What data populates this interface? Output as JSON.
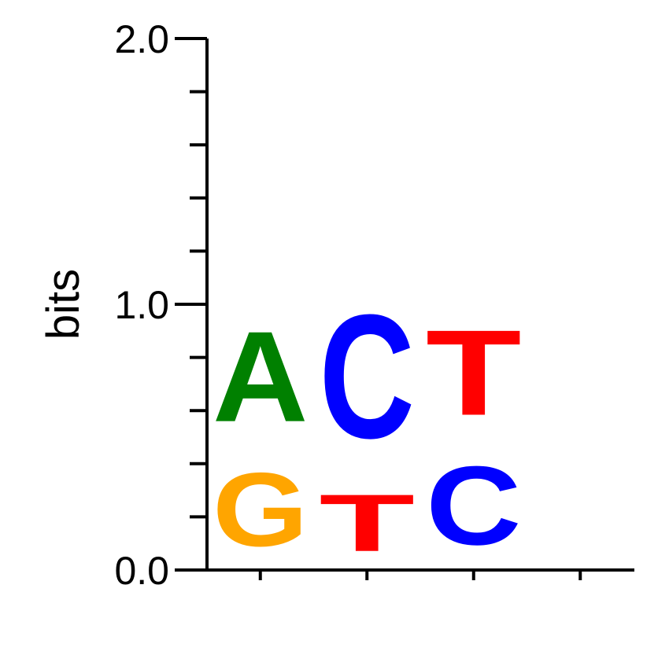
{
  "chart_data": {
    "type": "sequence-logo",
    "ylabel": "bits",
    "ylim": [
      0,
      2
    ],
    "y_tick_labels": [
      "0.0",
      "1.0",
      "2.0"
    ],
    "positions": [
      {
        "letters": [
          {
            "char": "G",
            "bits": 0.45
          },
          {
            "char": "A",
            "bits": 0.55
          }
        ]
      },
      {
        "letters": [
          {
            "char": "T",
            "bits": 0.35
          },
          {
            "char": "C",
            "bits": 0.75
          }
        ]
      },
      {
        "letters": [
          {
            "char": "C",
            "bits": 0.48
          },
          {
            "char": "T",
            "bits": 0.52
          }
        ]
      },
      {
        "letters": []
      }
    ],
    "colors": {
      "A": "#008000",
      "C": "#0000ff",
      "G": "#ffa500",
      "T": "#ff0000"
    }
  }
}
